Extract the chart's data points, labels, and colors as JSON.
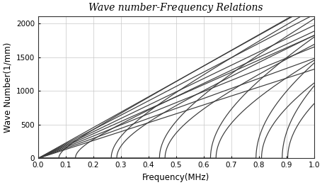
{
  "title": "Wave number-Frequency Relations",
  "xlabel": "Frequency(MHz)",
  "ylabel": "Wave Number(1/mm)",
  "xlim": [
    0,
    1.0
  ],
  "ylim": [
    0,
    2100
  ],
  "xticks": [
    0,
    0.1,
    0.2,
    0.3,
    0.4,
    0.5,
    0.6,
    0.7,
    0.8,
    0.9,
    1.0
  ],
  "yticks": [
    0,
    500,
    1000,
    1500,
    2000
  ],
  "line_color": "#3a3a3a",
  "line_width": 0.85,
  "bg_color": "#ffffff",
  "title_fontsize": 10,
  "label_fontsize": 8.5,
  "tick_fontsize": 7.5,
  "title_style": "italic",
  "linear_slopes": [
    2280,
    2130,
    1970,
    1820,
    1650,
    1480,
    1320
  ],
  "cutoff_groups": [
    {
      "fc": 0.075,
      "slope": 2300,
      "slope2": 2100
    },
    {
      "fc": 0.135,
      "slope": 1900,
      "slope2": 1700
    },
    {
      "fc": 0.265,
      "slope": 2300,
      "slope2": 2100
    },
    {
      "fc": 0.285,
      "slope": 1900,
      "slope2": 1700
    },
    {
      "fc": 0.44,
      "slope": 2300,
      "slope2": 2100
    },
    {
      "fc": 0.46,
      "slope": 1900,
      "slope2": 1700
    },
    {
      "fc": 0.625,
      "slope": 2300,
      "slope2": 2100
    },
    {
      "fc": 0.645,
      "slope": 1900,
      "slope2": 1700
    },
    {
      "fc": 0.79,
      "slope": 2300,
      "slope2": 2100
    },
    {
      "fc": 0.81,
      "slope": 1900,
      "slope2": 1700
    },
    {
      "fc": 0.885,
      "slope": 2300,
      "slope2": 2100
    },
    {
      "fc": 0.905,
      "slope": 1900,
      "slope2": 1700
    }
  ]
}
